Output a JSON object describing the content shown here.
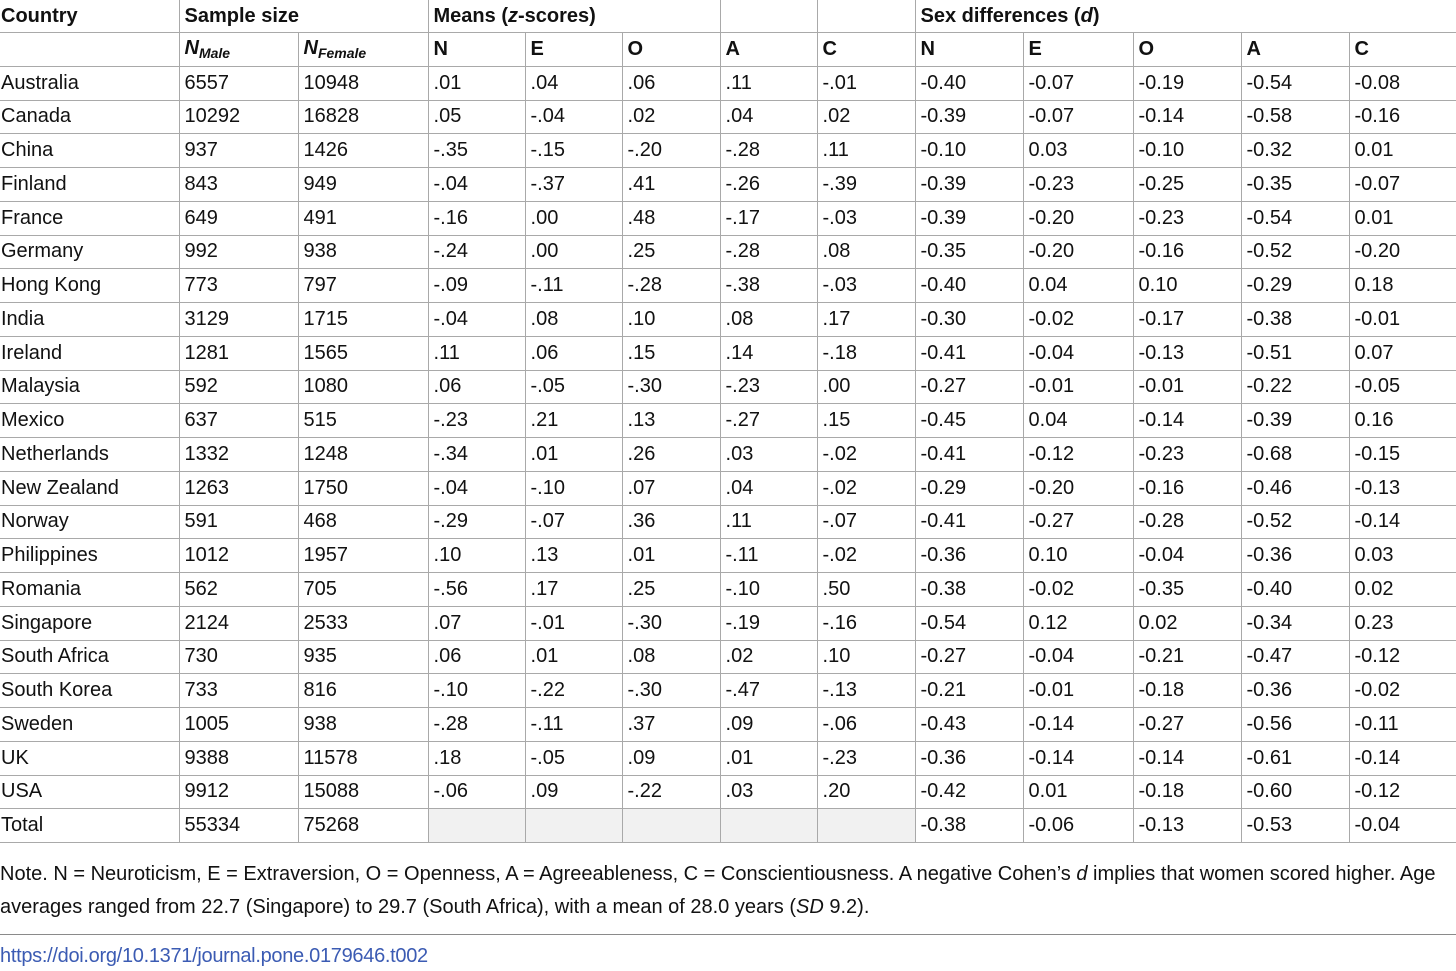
{
  "header": {
    "country": "Country",
    "sample_size": "Sample size",
    "means_prefix": "Means (",
    "means_italic": "z",
    "means_suffix": "-scores)",
    "sex_diff_prefix": "Sex differences (",
    "sex_diff_italic": "d",
    "sex_diff_suffix": ")",
    "n_male_base": "N",
    "n_male_sub": "Male",
    "n_female_base": "N",
    "n_female_sub": "Female",
    "traits": [
      "N",
      "E",
      "O",
      "A",
      "C"
    ]
  },
  "rows": [
    {
      "country": "Australia",
      "n_male": "6557",
      "n_female": "10948",
      "means": [
        ".01",
        ".04",
        ".06",
        ".11",
        "-.01"
      ],
      "d": [
        "-0.40",
        "-0.07",
        "-0.19",
        "-0.54",
        "-0.08"
      ]
    },
    {
      "country": "Canada",
      "n_male": "10292",
      "n_female": "16828",
      "means": [
        ".05",
        "-.04",
        ".02",
        ".04",
        ".02"
      ],
      "d": [
        "-0.39",
        "-0.07",
        "-0.14",
        "-0.58",
        "-0.16"
      ]
    },
    {
      "country": "China",
      "n_male": "937",
      "n_female": "1426",
      "means": [
        "-.35",
        "-.15",
        "-.20",
        "-.28",
        ".11"
      ],
      "d": [
        "-0.10",
        "0.03",
        "-0.10",
        "-0.32",
        "0.01"
      ]
    },
    {
      "country": "Finland",
      "n_male": "843",
      "n_female": "949",
      "means": [
        "-.04",
        "-.37",
        ".41",
        "-.26",
        "-.39"
      ],
      "d": [
        "-0.39",
        "-0.23",
        "-0.25",
        "-0.35",
        "-0.07"
      ]
    },
    {
      "country": "France",
      "n_male": "649",
      "n_female": "491",
      "means": [
        "-.16",
        ".00",
        ".48",
        "-.17",
        "-.03"
      ],
      "d": [
        "-0.39",
        "-0.20",
        "-0.23",
        "-0.54",
        "0.01"
      ]
    },
    {
      "country": "Germany",
      "n_male": "992",
      "n_female": "938",
      "means": [
        "-.24",
        ".00",
        ".25",
        "-.28",
        ".08"
      ],
      "d": [
        "-0.35",
        "-0.20",
        "-0.16",
        "-0.52",
        "-0.20"
      ]
    },
    {
      "country": "Hong Kong",
      "n_male": "773",
      "n_female": "797",
      "means": [
        "-.09",
        "-.11",
        "-.28",
        "-.38",
        "-.03"
      ],
      "d": [
        "-0.40",
        "0.04",
        "0.10",
        "-0.29",
        "0.18"
      ]
    },
    {
      "country": "India",
      "n_male": "3129",
      "n_female": "1715",
      "means": [
        "-.04",
        ".08",
        ".10",
        ".08",
        ".17"
      ],
      "d": [
        "-0.30",
        "-0.02",
        "-0.17",
        "-0.38",
        "-0.01"
      ]
    },
    {
      "country": "Ireland",
      "n_male": "1281",
      "n_female": "1565",
      "means": [
        ".11",
        ".06",
        ".15",
        ".14",
        "-.18"
      ],
      "d": [
        "-0.41",
        "-0.04",
        "-0.13",
        "-0.51",
        "0.07"
      ]
    },
    {
      "country": "Malaysia",
      "n_male": "592",
      "n_female": "1080",
      "means": [
        ".06",
        "-.05",
        "-.30",
        "-.23",
        ".00"
      ],
      "d": [
        "-0.27",
        "-0.01",
        "-0.01",
        "-0.22",
        "-0.05"
      ]
    },
    {
      "country": "Mexico",
      "n_male": "637",
      "n_female": "515",
      "means": [
        "-.23",
        ".21",
        ".13",
        "-.27",
        ".15"
      ],
      "d": [
        "-0.45",
        "0.04",
        "-0.14",
        "-0.39",
        "0.16"
      ]
    },
    {
      "country": "Netherlands",
      "n_male": "1332",
      "n_female": "1248",
      "means": [
        "-.34",
        ".01",
        ".26",
        ".03",
        "-.02"
      ],
      "d": [
        "-0.41",
        "-0.12",
        "-0.23",
        "-0.68",
        "-0.15"
      ]
    },
    {
      "country": "New Zealand",
      "n_male": "1263",
      "n_female": "1750",
      "means": [
        "-.04",
        "-.10",
        ".07",
        ".04",
        "-.02"
      ],
      "d": [
        "-0.29",
        "-0.20",
        "-0.16",
        "-0.46",
        "-0.13"
      ]
    },
    {
      "country": "Norway",
      "n_male": "591",
      "n_female": "468",
      "means": [
        "-.29",
        "-.07",
        ".36",
        ".11",
        "-.07"
      ],
      "d": [
        "-0.41",
        "-0.27",
        "-0.28",
        "-0.52",
        "-0.14"
      ]
    },
    {
      "country": "Philippines",
      "n_male": "1012",
      "n_female": "1957",
      "means": [
        ".10",
        ".13",
        ".01",
        "-.11",
        "-.02"
      ],
      "d": [
        "-0.36",
        "0.10",
        "-0.04",
        "-0.36",
        "0.03"
      ]
    },
    {
      "country": "Romania",
      "n_male": "562",
      "n_female": "705",
      "means": [
        "-.56",
        ".17",
        ".25",
        "-.10",
        ".50"
      ],
      "d": [
        "-0.38",
        "-0.02",
        "-0.35",
        "-0.40",
        "0.02"
      ]
    },
    {
      "country": "Singapore",
      "n_male": "2124",
      "n_female": "2533",
      "means": [
        ".07",
        "-.01",
        "-.30",
        "-.19",
        "-.16"
      ],
      "d": [
        "-0.54",
        "0.12",
        "0.02",
        "-0.34",
        "0.23"
      ]
    },
    {
      "country": "South Africa",
      "n_male": "730",
      "n_female": "935",
      "means": [
        ".06",
        ".01",
        ".08",
        ".02",
        ".10"
      ],
      "d": [
        "-0.27",
        "-0.04",
        "-0.21",
        "-0.47",
        "-0.12"
      ]
    },
    {
      "country": "South Korea",
      "n_male": "733",
      "n_female": "816",
      "means": [
        "-.10",
        "-.22",
        "-.30",
        "-.47",
        "-.13"
      ],
      "d": [
        "-0.21",
        "-0.01",
        "-0.18",
        "-0.36",
        "-0.02"
      ]
    },
    {
      "country": "Sweden",
      "n_male": "1005",
      "n_female": "938",
      "means": [
        "-.28",
        "-.11",
        ".37",
        ".09",
        "-.06"
      ],
      "d": [
        "-0.43",
        "-0.14",
        "-0.27",
        "-0.56",
        "-0.11"
      ]
    },
    {
      "country": "UK",
      "n_male": "9388",
      "n_female": "11578",
      "means": [
        ".18",
        "-.05",
        ".09",
        ".01",
        "-.23"
      ],
      "d": [
        "-0.36",
        "-0.14",
        "-0.14",
        "-0.61",
        "-0.14"
      ]
    },
    {
      "country": "USA",
      "n_male": "9912",
      "n_female": "15088",
      "means": [
        "-.06",
        ".09",
        "-.22",
        ".03",
        ".20"
      ],
      "d": [
        "-0.42",
        "0.01",
        "-0.18",
        "-0.60",
        "-0.12"
      ]
    }
  ],
  "total": {
    "country": "Total",
    "n_male": "55334",
    "n_female": "75268",
    "d": [
      "-0.38",
      "-0.06",
      "-0.13",
      "-0.53",
      "-0.04"
    ]
  },
  "note": {
    "part1": "Note. N = Neuroticism, E = Extraversion, O = Openness, A = Agreeableness, C = Conscientiousness. A negative Cohen’s ",
    "d_italic": "d",
    "part2": " implies that women scored higher. Age averages ranged from 22.7 (Singapore) to 29.7 (South Africa), with a mean of 28.0 years (",
    "sd_italic": "SD",
    "part3": " 9.2)."
  },
  "doi": "https://doi.org/10.1371/journal.pone.0179646.t002"
}
